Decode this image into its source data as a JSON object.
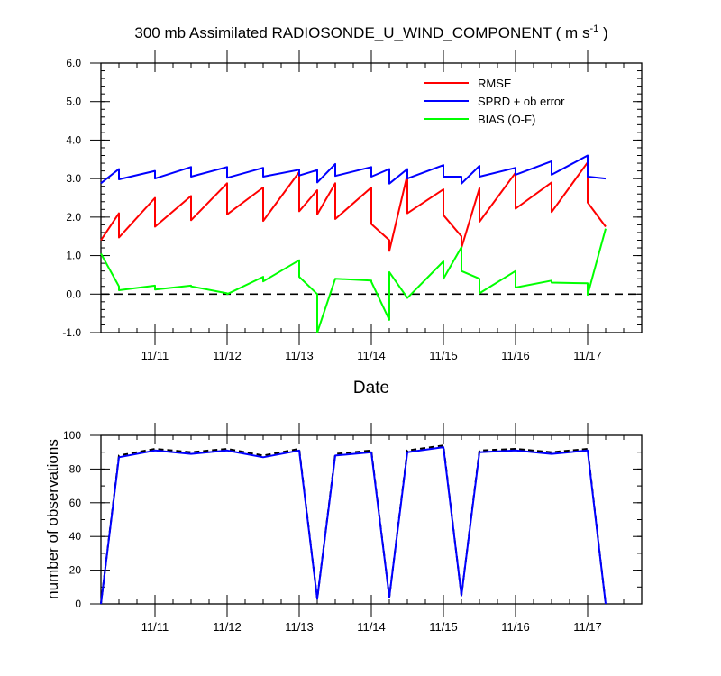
{
  "title_main": "300 mb Assimilated RADIOSONDE_U_WIND_COMPONENT ( m s",
  "title_sup": "-1",
  "title_end": " )",
  "x_axis_label": "Date",
  "colors": {
    "rmse": "#ff0000",
    "sprd": "#0000ff",
    "bias": "#00ff00",
    "zero": "#000000",
    "count": "#000000",
    "count2": "#0000ff"
  },
  "chart_data": [
    {
      "type": "line",
      "xlim": [
        10.25,
        17.75
      ],
      "ylim": [
        -1.0,
        6.0
      ],
      "yticks": [
        -1.0,
        0.0,
        1.0,
        2.0,
        3.0,
        4.0,
        5.0,
        6.0
      ],
      "ytick_labels": [
        "-1.0",
        "0.0",
        "1.0",
        "2.0",
        "3.0",
        "4.0",
        "5.0",
        "6.0"
      ],
      "xticks": [
        11,
        12,
        13,
        14,
        15,
        16,
        17
      ],
      "xtick_labels": [
        "11/11",
        "11/12",
        "11/13",
        "11/14",
        "11/15",
        "11/16",
        "11/17"
      ],
      "legend_position": "top-right",
      "series": [
        {
          "name": "RMSE",
          "color": "#ff0000",
          "points": [
            [
              10.25,
              1.4
            ],
            [
              10.5,
              2.1
            ],
            [
              10.5,
              1.47
            ],
            [
              11.0,
              2.5
            ],
            [
              11.0,
              1.75
            ],
            [
              11.5,
              2.55
            ],
            [
              11.5,
              1.92
            ],
            [
              12.0,
              2.88
            ],
            [
              12.0,
              2.07
            ],
            [
              12.5,
              2.77
            ],
            [
              12.5,
              1.9
            ],
            [
              13.0,
              3.17
            ],
            [
              13.0,
              2.15
            ],
            [
              13.25,
              2.7
            ],
            [
              13.25,
              2.07
            ],
            [
              13.5,
              2.88
            ],
            [
              13.5,
              1.95
            ],
            [
              14.0,
              2.77
            ],
            [
              14.0,
              1.82
            ],
            [
              14.25,
              1.4
            ],
            [
              14.25,
              1.12
            ],
            [
              14.5,
              3.1
            ],
            [
              14.5,
              2.1
            ],
            [
              15.0,
              2.72
            ],
            [
              15.0,
              2.05
            ],
            [
              15.25,
              1.5
            ],
            [
              15.25,
              1.2
            ],
            [
              15.5,
              2.75
            ],
            [
              15.5,
              1.88
            ],
            [
              16.0,
              3.15
            ],
            [
              16.0,
              2.22
            ],
            [
              16.5,
              2.9
            ],
            [
              16.5,
              2.13
            ],
            [
              17.0,
              3.42
            ],
            [
              17.0,
              2.38
            ],
            [
              17.25,
              1.75
            ]
          ]
        },
        {
          "name": "SPRD + ob error",
          "color": "#0000ff",
          "points": [
            [
              10.25,
              2.88
            ],
            [
              10.5,
              3.25
            ],
            [
              10.5,
              2.98
            ],
            [
              11.0,
              3.2
            ],
            [
              11.0,
              3.0
            ],
            [
              11.5,
              3.3
            ],
            [
              11.5,
              3.05
            ],
            [
              12.0,
              3.3
            ],
            [
              12.0,
              3.02
            ],
            [
              12.5,
              3.28
            ],
            [
              12.5,
              3.05
            ],
            [
              13.0,
              3.23
            ],
            [
              13.0,
              3.08
            ],
            [
              13.25,
              3.22
            ],
            [
              13.25,
              2.9
            ],
            [
              13.5,
              3.38
            ],
            [
              13.5,
              3.07
            ],
            [
              14.0,
              3.3
            ],
            [
              14.0,
              3.05
            ],
            [
              14.25,
              3.25
            ],
            [
              14.25,
              2.87
            ],
            [
              14.5,
              3.25
            ],
            [
              14.5,
              3.0
            ],
            [
              15.0,
              3.35
            ],
            [
              15.0,
              3.05
            ],
            [
              15.25,
              3.05
            ],
            [
              15.25,
              2.87
            ],
            [
              15.5,
              3.33
            ],
            [
              15.5,
              3.05
            ],
            [
              16.0,
              3.28
            ],
            [
              16.0,
              3.1
            ],
            [
              16.5,
              3.45
            ],
            [
              16.5,
              3.1
            ],
            [
              17.0,
              3.6
            ],
            [
              17.0,
              3.05
            ],
            [
              17.25,
              3.0
            ]
          ]
        },
        {
          "name": "BIAS (O-F)",
          "color": "#00ff00",
          "points": [
            [
              10.25,
              1.05
            ],
            [
              10.5,
              0.2
            ],
            [
              10.5,
              0.1
            ],
            [
              11.0,
              0.22
            ],
            [
              11.0,
              0.12
            ],
            [
              11.5,
              0.22
            ],
            [
              11.5,
              0.2
            ],
            [
              12.0,
              0.02
            ],
            [
              12.0,
              0.0
            ],
            [
              12.5,
              0.45
            ],
            [
              12.5,
              0.33
            ],
            [
              13.0,
              0.88
            ],
            [
              13.0,
              0.45
            ],
            [
              13.25,
              0.0
            ],
            [
              13.25,
              -1.0
            ],
            [
              13.5,
              0.4
            ],
            [
              13.5,
              0.4
            ],
            [
              14.0,
              0.35
            ],
            [
              14.0,
              0.32
            ],
            [
              14.25,
              -0.67
            ],
            [
              14.25,
              0.57
            ],
            [
              14.5,
              -0.1
            ],
            [
              14.5,
              -0.1
            ],
            [
              15.0,
              0.85
            ],
            [
              15.0,
              0.4
            ],
            [
              15.25,
              1.22
            ],
            [
              15.25,
              0.6
            ],
            [
              15.5,
              0.4
            ],
            [
              15.5,
              0.02
            ],
            [
              16.0,
              0.6
            ],
            [
              16.0,
              0.17
            ],
            [
              16.5,
              0.35
            ],
            [
              16.5,
              0.3
            ],
            [
              17.0,
              0.28
            ],
            [
              17.0,
              -0.02
            ],
            [
              17.25,
              1.7
            ]
          ]
        }
      ],
      "reference_line": {
        "y": 0.0,
        "style": "dashed",
        "color": "#000000"
      }
    },
    {
      "type": "line",
      "ylabel": "number of observations",
      "xlim": [
        10.25,
        17.75
      ],
      "ylim": [
        0,
        100
      ],
      "yticks": [
        0,
        20,
        40,
        60,
        80,
        100
      ],
      "ytick_labels": [
        "0",
        "20",
        "40",
        "60",
        "80",
        "100"
      ],
      "xticks": [
        11,
        12,
        13,
        14,
        15,
        16,
        17
      ],
      "xtick_labels": [
        "11/11",
        "11/12",
        "11/13",
        "11/14",
        "11/15",
        "11/16",
        "11/17"
      ],
      "series": [
        {
          "style": "dashed",
          "color": "#000000",
          "points": [
            [
              10.25,
              0
            ],
            [
              10.5,
              88
            ],
            [
              11.0,
              92
            ],
            [
              11.5,
              90
            ],
            [
              12.0,
              92
            ],
            [
              12.5,
              88
            ],
            [
              13.0,
              92
            ],
            [
              13.25,
              3
            ],
            [
              13.5,
              89
            ],
            [
              14.0,
              91
            ],
            [
              14.25,
              4
            ],
            [
              14.5,
              91
            ],
            [
              15.0,
              94
            ],
            [
              15.25,
              5
            ],
            [
              15.5,
              91
            ],
            [
              16.0,
              92
            ],
            [
              16.5,
              90
            ],
            [
              17.0,
              92
            ],
            [
              17.25,
              0
            ]
          ]
        },
        {
          "style": "solid",
          "color": "#0000ff",
          "points": [
            [
              10.25,
              0
            ],
            [
              10.5,
              87
            ],
            [
              11.0,
              91
            ],
            [
              11.5,
              89
            ],
            [
              12.0,
              91
            ],
            [
              12.5,
              87
            ],
            [
              13.0,
              91
            ],
            [
              13.25,
              3
            ],
            [
              13.5,
              88
            ],
            [
              14.0,
              90
            ],
            [
              14.25,
              4
            ],
            [
              14.5,
              90
            ],
            [
              15.0,
              93
            ],
            [
              15.25,
              5
            ],
            [
              15.5,
              90
            ],
            [
              16.0,
              91
            ],
            [
              16.5,
              89
            ],
            [
              17.0,
              91
            ],
            [
              17.25,
              0
            ]
          ]
        }
      ]
    }
  ]
}
